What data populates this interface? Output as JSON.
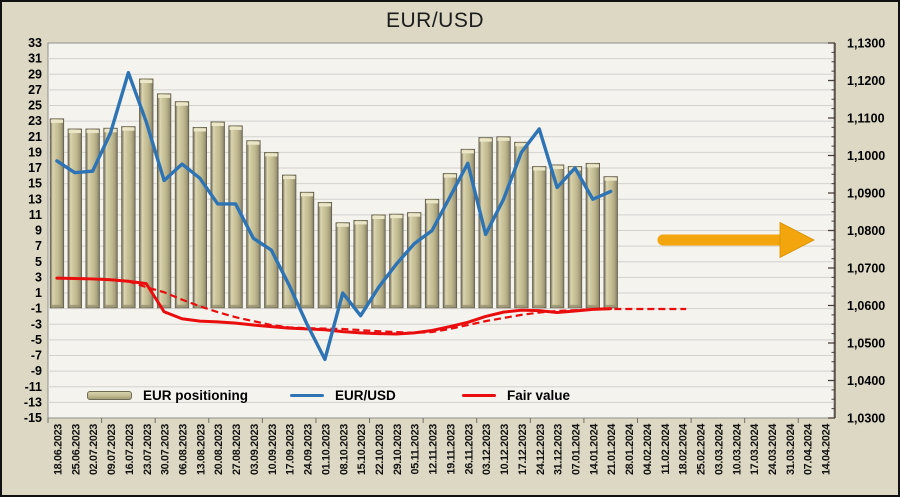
{
  "title": "EUR/USD",
  "legend": {
    "positioning_label": "EUR positioning",
    "eurusd_label": "EUR/USD",
    "fair_value_label": "Fair value"
  },
  "colors": {
    "canvas_bg": "#ddd8c3",
    "plot_bg": "#f4f3ee",
    "gridline": "#d2d2cd",
    "plot_border": "#8f8f88",
    "bar_edge": "#5f5c49",
    "bar_light": "#ddd7b1",
    "bar_mid": "#c3bc93",
    "bar_dark": "#8b8670",
    "bar_cap": "#ebe6c7",
    "eurusd_line": "#2e74b5",
    "fair_value_line": "#e90d0d",
    "arrow_fill": "#f2a50c",
    "arrow_edge": "#d89000",
    "right_axis": "#4a3f38",
    "axis_text": "#000000"
  },
  "chart_data": {
    "type": "bar",
    "title": "EUR/USD",
    "categories": [
      "18.06.2023",
      "25.06.2023",
      "02.07.2023",
      "09.07.2023",
      "16.07.2023",
      "23.07.2023",
      "30.07.2023",
      "06.08.2023",
      "13.08.2023",
      "20.08.2023",
      "27.08.2023",
      "03.09.2023",
      "10.09.2023",
      "17.09.2023",
      "24.09.2023",
      "01.10.2023",
      "08.10.2023",
      "15.10.2023",
      "22.10.2023",
      "29.10.2023",
      "05.11.2023",
      "12.11.2023",
      "19.11.2023",
      "26.11.2023",
      "03.12.2023",
      "10.12.2023",
      "17.12.2023",
      "24.12.2023",
      "31.12.2023",
      "07.01.2024",
      "14.01.2024",
      "21.01.2024",
      "28.01.2024",
      "04.02.2024",
      "11.02.2024",
      "18.02.2024",
      "25.02.2024",
      "03.03.2024",
      "10.03.2024",
      "17.03.2024",
      "24.03.2024",
      "31.03.2024",
      "07.04.2024",
      "14.04.2024"
    ],
    "series": [
      {
        "name": "EUR positioning",
        "type": "bar",
        "axis": "left",
        "values": [
          23.3,
          22.0,
          22.0,
          22.1,
          22.3,
          28.4,
          26.5,
          25.5,
          22.2,
          22.9,
          22.4,
          20.5,
          19.0,
          16.1,
          13.9,
          12.6,
          10.0,
          10.3,
          11.0,
          11.1,
          11.3,
          13.0,
          16.3,
          19.4,
          20.9,
          21.0,
          20.3,
          17.2,
          17.4,
          17.2,
          17.6,
          15.9
        ],
        "baseline": -0.9
      },
      {
        "name": "EUR/USD",
        "type": "line",
        "axis": "left",
        "values": [
          17.9,
          16.4,
          16.6,
          21.5,
          29.2,
          22.9,
          15.4,
          17.5,
          15.7,
          12.4,
          12.4,
          8.0,
          6.5,
          2.0,
          -3.0,
          -7.5,
          1.0,
          -1.9,
          1.7,
          4.7,
          7.3,
          9.0,
          13.3,
          17.6,
          8.5,
          13.0,
          19.0,
          22.0,
          14.5,
          17.0,
          13.0,
          14.0
        ]
      },
      {
        "name": "Fair value",
        "type": "line",
        "axis": "left",
        "values": [
          2.9,
          2.85,
          2.8,
          2.7,
          2.5,
          2.2,
          -1.4,
          -2.3,
          -2.6,
          -2.7,
          -2.85,
          -3.1,
          -3.3,
          -3.5,
          -3.6,
          -3.7,
          -3.95,
          -4.1,
          -4.2,
          -4.25,
          -4.1,
          -3.8,
          -3.3,
          -2.75,
          -2.0,
          -1.45,
          -1.2,
          -1.25,
          -1.5,
          -1.3,
          -1.1,
          -1.0
        ]
      },
      {
        "name": "Fair value (dashed)",
        "type": "dashed-line",
        "axis": "left",
        "start_index": 4,
        "values": [
          2.5,
          1.75,
          1.1,
          0.15,
          -0.7,
          -1.45,
          -2.1,
          -2.6,
          -3.1,
          -3.4,
          -3.5,
          -3.55,
          -3.6,
          -3.75,
          -3.9,
          -4.0,
          -4.1,
          -4.0,
          -3.6,
          -3.1,
          -2.6,
          -2.2,
          -1.8,
          -1.5,
          -1.3,
          -1.2,
          -1.1,
          -1.05
        ],
        "extends_flat_to_category": "18.02.2024",
        "extension_value": -1.05
      }
    ],
    "left_axis": {
      "min": -15,
      "max": 33,
      "tick_step": 2,
      "tick_labels": [
        "33",
        "31",
        "29",
        "27",
        "25",
        "23",
        "21",
        "19",
        "17",
        "15",
        "13",
        "11",
        "9",
        "7",
        "5",
        "3",
        "1",
        "-1",
        "-3",
        "-5",
        "-7",
        "-9",
        "-11",
        "-13",
        "-15"
      ]
    },
    "right_axis": {
      "min": 1.03,
      "max": 1.13,
      "tick_step": 0.01,
      "minor_ticks_per_major": 4,
      "tick_labels": [
        "1,1300",
        "1,1200",
        "1,1100",
        "1,1000",
        "1,0900",
        "1,0800",
        "1,0700",
        "1,0600",
        "1,0500",
        "1,0400",
        "1,0300"
      ]
    },
    "grid": "horizontal-only",
    "legend_position": "bottom-inside",
    "annotations": [
      {
        "type": "arrow-right",
        "meaning": "flat-expectation-arrow",
        "x_from": 656,
        "x_to": 812,
        "y_center": 238,
        "level_left_axis": 7.5
      }
    ]
  }
}
